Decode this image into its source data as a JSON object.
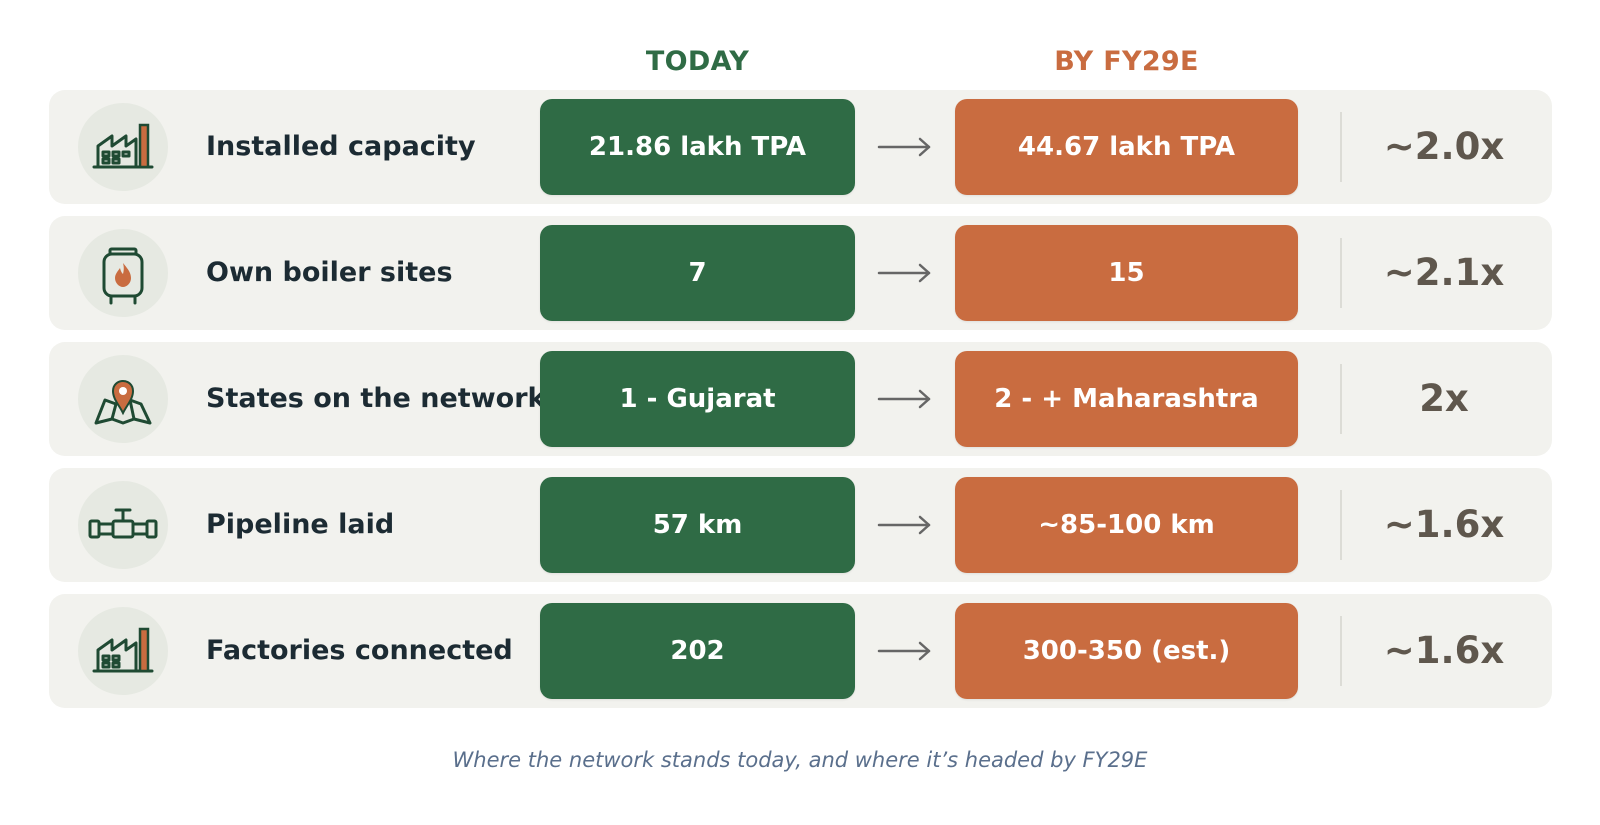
{
  "headers": {
    "today": "TODAY",
    "future": "BY FY29E"
  },
  "colors": {
    "today_accent": "#2f6b45",
    "future_accent": "#c96c40",
    "label_text": "#1c2b33",
    "multiplier_text": "#5f574d",
    "caption_text": "#5a6f8c",
    "icon_stroke": "#1f4a33",
    "icon_accent": "#c96c40",
    "arrow": "#666666"
  },
  "rows": [
    {
      "icon": "factory-icon",
      "label": "Installed capacity",
      "today": "21.86 lakh TPA",
      "future": "44.67 lakh TPA",
      "multiplier": "~2.0x"
    },
    {
      "icon": "boiler-icon",
      "label": "Own boiler sites",
      "today": "7",
      "future": "15",
      "multiplier": "~2.1x"
    },
    {
      "icon": "map-pin-icon",
      "label": "States on the network",
      "today": "1 - Gujarat",
      "future": "2 - + Maharashtra",
      "multiplier": "2x"
    },
    {
      "icon": "pipeline-icon",
      "label": "Pipeline laid",
      "today": "57 km",
      "future": "~85-100 km",
      "multiplier": "~1.6x"
    },
    {
      "icon": "factory-icon",
      "label": "Factories connected",
      "today": "202",
      "future": "300-350 (est.)",
      "multiplier": "~1.6x"
    }
  ],
  "caption": "Where the network stands today, and where it’s headed by FY29E"
}
